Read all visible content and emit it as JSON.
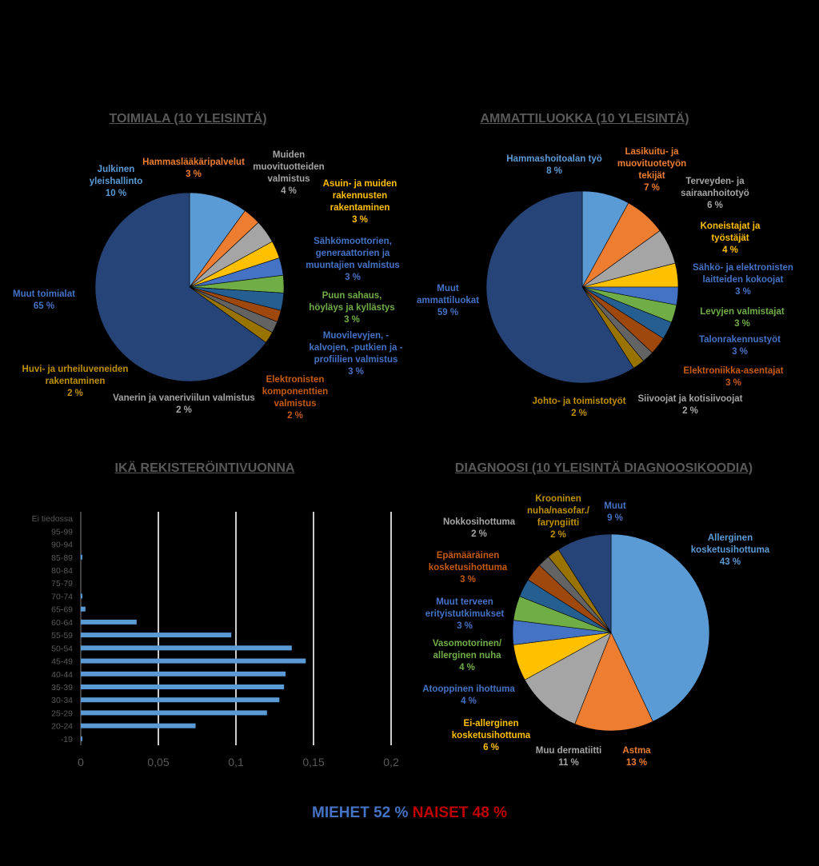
{
  "colors": {
    "blue_light": "#5b9bd5",
    "orange": "#ed7d31",
    "grey": "#a5a5a5",
    "gold": "#ffc000",
    "blue": "#4472c4",
    "green": "#70ad47",
    "navy": "#255e91",
    "rust": "#9e480e",
    "dark_grey": "#636363",
    "dark_gold": "#997300",
    "big_slice": "#264478",
    "text_grey": "#595959",
    "men": "#4472c4",
    "women": "#c00000"
  },
  "footer": {
    "men_label": "MIEHET",
    "men_value": "52 %",
    "women_label": "NAISET",
    "women_value": "48 %"
  },
  "chart_data": [
    {
      "type": "pie",
      "title": "TOIMIALA (10 YLEISINTÄ)",
      "slices": [
        {
          "label": "Julkinen yleishallinto",
          "value": 10,
          "pct": "10 %",
          "color": "#5b9bd5"
        },
        {
          "label": "Hammaslääkäripalvelut",
          "value": 3,
          "pct": "3 %",
          "color": "#ed7d31"
        },
        {
          "label": "Muiden muovituotteiden valmistus",
          "value": 4,
          "pct": "4 %",
          "color": "#a5a5a5"
        },
        {
          "label": "Asuin- ja muiden rakennusten rakentaminen",
          "value": 3,
          "pct": "3 %",
          "color": "#ffc000"
        },
        {
          "label": "Sähkömoottorien, generaattorien ja muuntajien valmistus",
          "value": 3,
          "pct": "3 %",
          "color": "#4472c4"
        },
        {
          "label": "Puun sahaus, höyläys ja kyllästys",
          "value": 3,
          "pct": "3 %",
          "color": "#70ad47"
        },
        {
          "label": "Muovilevyjen, -kalvojen, -putkien ja -profiilien valmistus",
          "value": 3,
          "pct": "3 %",
          "color": "#255e91"
        },
        {
          "label": "Elektronisten komponenttien valmistus",
          "value": 2,
          "pct": "2 %",
          "color": "#9e480e"
        },
        {
          "label": "Vanerin ja vaneriviilun valmistus",
          "value": 2,
          "pct": "2 %",
          "color": "#636363"
        },
        {
          "label": "Huvi- ja urheiluveneiden rakentaminen",
          "value": 2,
          "pct": "2 %",
          "color": "#997300"
        },
        {
          "label": "Muut toimialat",
          "value": 65,
          "pct": "65 %",
          "color": "#264478"
        }
      ]
    },
    {
      "type": "pie",
      "title": "AMMATTILUOKKA (10 YLEISINTÄ)",
      "slices": [
        {
          "label": "Hammashoitoalan työ",
          "value": 8,
          "pct": "8 %",
          "color": "#5b9bd5"
        },
        {
          "label": "Lasikuitu- ja muovituotetyön tekijät",
          "value": 7,
          "pct": "7 %",
          "color": "#ed7d31"
        },
        {
          "label": "Terveyden- ja sairaanhoitotyö",
          "value": 6,
          "pct": "6 %",
          "color": "#a5a5a5"
        },
        {
          "label": "Koneistajat ja työstäjät",
          "value": 4,
          "pct": "4 %",
          "color": "#ffc000"
        },
        {
          "label": "Sähkö- ja elektronisten laitteiden kokoojat",
          "value": 3,
          "pct": "3 %",
          "color": "#4472c4"
        },
        {
          "label": "Levyjen valmistajat",
          "value": 3,
          "pct": "3 %",
          "color": "#70ad47"
        },
        {
          "label": "Talonrakennustyöt",
          "value": 3,
          "pct": "3 %",
          "color": "#255e91"
        },
        {
          "label": "Elektroniikka-asentajat",
          "value": 3,
          "pct": "3 %",
          "color": "#9e480e"
        },
        {
          "label": "Siivoojat ja kotisiivoojat",
          "value": 2,
          "pct": "2 %",
          "color": "#636363"
        },
        {
          "label": "Johto- ja toimistotyöt",
          "value": 2,
          "pct": "2 %",
          "color": "#997300"
        },
        {
          "label": "Muut ammattiluokat",
          "value": 59,
          "pct": "59 %",
          "color": "#264478"
        }
      ]
    },
    {
      "type": "bar",
      "orientation": "horizontal",
      "title": "IKÄ REKISTERÖINTIVUONNA",
      "categories": [
        "-19",
        "20-24",
        "25-29",
        "30-34",
        "35-39",
        "40-44",
        "45-49",
        "50-54",
        "55-59",
        "60-64",
        "65-69",
        "70-74",
        "75-79",
        "80-84",
        "85-89",
        "90-94",
        "95-99",
        "Ei tiedossa"
      ],
      "values": [
        0.001,
        0.074,
        0.12,
        0.128,
        0.131,
        0.132,
        0.145,
        0.136,
        0.097,
        0.036,
        0.003,
        0.001,
        0,
        0,
        0.001,
        0,
        0,
        0
      ],
      "xlim": [
        0,
        0.2
      ],
      "xticks": [
        "0",
        "0,05",
        "0,1",
        "0,15",
        "0,2"
      ],
      "color": "#5b9bd5",
      "grid": true
    },
    {
      "type": "pie",
      "title": "DIAGNOOSI (10 YLEISINTÄ DIAGNOOSIKOODIA)",
      "slices": [
        {
          "label": "Allerginen kosketusihottuma",
          "value": 43,
          "pct": "43 %",
          "color": "#5b9bd5"
        },
        {
          "label": "Astma",
          "value": 13,
          "pct": "13 %",
          "color": "#ed7d31"
        },
        {
          "label": "Muu dermatiitti",
          "value": 11,
          "pct": "11 %",
          "color": "#a5a5a5"
        },
        {
          "label": "Ei-allerginen kosketusihottuma",
          "value": 6,
          "pct": "6 %",
          "color": "#ffc000"
        },
        {
          "label": "Atooppinen ihottuma",
          "value": 4,
          "pct": "4 %",
          "color": "#4472c4"
        },
        {
          "label": "Vasomotorinen/ allerginen nuha",
          "value": 4,
          "pct": "4 %",
          "color": "#70ad47"
        },
        {
          "label": "Muut terveen erityistutkimukset",
          "value": 3,
          "pct": "3 %",
          "color": "#255e91"
        },
        {
          "label": "Epämääräinen kosketusihottuma",
          "value": 3,
          "pct": "3 %",
          "color": "#9e480e"
        },
        {
          "label": "Nokkosihottuma",
          "value": 2,
          "pct": "2 %",
          "color": "#636363"
        },
        {
          "label": "Krooninen nuha/nasofar./ faryngiitti",
          "value": 2,
          "pct": "2 %",
          "color": "#997300"
        },
        {
          "label": "Muut",
          "value": 9,
          "pct": "9 %",
          "color": "#264478"
        }
      ]
    }
  ]
}
